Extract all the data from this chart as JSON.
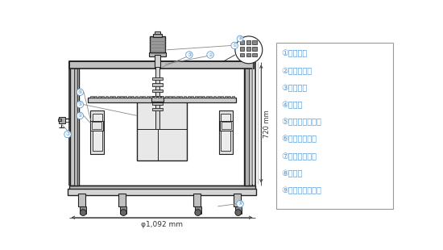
{
  "legend_items": [
    "①モーター",
    "②回転アーム",
    "③シャフト",
    "④回転板",
    "⑤センタードラム",
    "⑥アウトドラム",
    "⑦排水ドレーン",
    "⑧供試体",
    "⑨研磨材（鈗材）"
  ],
  "dim_height": "720 mm",
  "dim_width": "φ1,092 mm",
  "bg_color": "#ffffff",
  "line_color": "#222222",
  "label_color": "#5b9bd5",
  "legend_border_color": "#999999",
  "legend_text_color": "#5b9bd5"
}
